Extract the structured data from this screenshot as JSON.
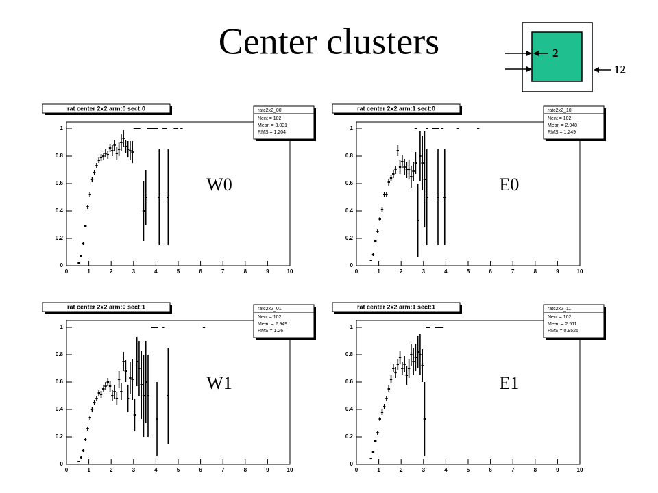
{
  "title": "Center clusters",
  "diagram": {
    "inner": "2",
    "outer": "12"
  },
  "chart_data": [
    {
      "type": "errorbar",
      "title": "rat center 2x2 arm:0 sect:0",
      "annotation": "W0",
      "stats": {
        "name": "ratc2x2_00",
        "lines": [
          "Nent = 102",
          "Mean = 3.031",
          "RMS = 1.204"
        ]
      },
      "xlim": [
        0,
        10
      ],
      "ylim": [
        0,
        1.05
      ],
      "xticks": [
        0,
        1,
        2,
        3,
        4,
        5,
        6,
        7,
        8,
        9,
        10
      ],
      "yticks": [
        0,
        0.2,
        0.4,
        0.6,
        0.8,
        1
      ],
      "color": "#000000",
      "x": [
        0.55,
        0.65,
        0.75,
        0.85,
        0.95,
        1.05,
        1.15,
        1.25,
        1.35,
        1.45,
        1.55,
        1.65,
        1.75,
        1.85,
        1.95,
        2.05,
        2.15,
        2.25,
        2.35,
        2.45,
        2.55,
        2.65,
        2.75,
        2.85,
        2.95,
        3.45,
        3.55,
        4.15,
        4.55,
        3.05,
        3.15,
        3.25,
        3.65,
        3.75,
        3.85,
        3.95,
        4.05,
        4.35,
        4.45,
        4.85,
        4.95,
        5.15
      ],
      "values": [
        0.02,
        0.07,
        0.16,
        0.29,
        0.43,
        0.52,
        0.63,
        0.68,
        0.73,
        0.77,
        0.79,
        0.8,
        0.82,
        0.81,
        0.86,
        0.84,
        0.88,
        0.82,
        0.85,
        0.9,
        0.93,
        0.87,
        0.85,
        0.84,
        0.83,
        0.4,
        0.5,
        0.5,
        0.5,
        1,
        1,
        1,
        1,
        1,
        1,
        1,
        1,
        1,
        1,
        1,
        1,
        1
      ],
      "errors": [
        0.005,
        0.01,
        0.01,
        0.01,
        0.015,
        0.015,
        0.02,
        0.02,
        0.02,
        0.02,
        0.025,
        0.025,
        0.03,
        0.03,
        0.03,
        0.04,
        0.04,
        0.05,
        0.05,
        0.06,
        0.06,
        0.05,
        0.06,
        0.07,
        0.08,
        0.22,
        0.2,
        0.35,
        0.35,
        0,
        0,
        0,
        0,
        0,
        0,
        0,
        0,
        0,
        0,
        0,
        0,
        0
      ]
    },
    {
      "type": "errorbar",
      "title": "rat center 2x2 arm:1 sect:0",
      "annotation": "E0",
      "stats": {
        "name": "ratc2x2_10",
        "lines": [
          "Nent = 102",
          "Mean = 2.948",
          "RMS = 1.249"
        ]
      },
      "xlim": [
        0,
        10
      ],
      "ylim": [
        0,
        1.05
      ],
      "xticks": [
        0,
        1,
        2,
        3,
        4,
        5,
        6,
        7,
        8,
        9,
        10
      ],
      "yticks": [
        0,
        0.2,
        0.4,
        0.6,
        0.8,
        1
      ],
      "color": "#000000",
      "x": [
        0.65,
        0.75,
        0.85,
        0.95,
        1.05,
        1.15,
        1.25,
        1.35,
        1.45,
        1.55,
        1.65,
        1.75,
        1.85,
        1.95,
        2.05,
        2.15,
        2.25,
        2.35,
        2.45,
        2.55,
        2.65,
        2.75,
        2.85,
        2.95,
        3.05,
        3.15,
        3.65,
        3.95,
        2.65,
        3.15,
        3.45,
        3.55,
        3.65,
        3.85,
        4.55,
        5.45
      ],
      "values": [
        0.04,
        0.08,
        0.18,
        0.25,
        0.34,
        0.41,
        0.52,
        0.52,
        0.61,
        0.64,
        0.67,
        0.7,
        0.84,
        0.72,
        0.76,
        0.72,
        0.7,
        0.7,
        0.65,
        0.69,
        0.75,
        0.33,
        0.8,
        0.75,
        0.63,
        0.5,
        0.5,
        0.5,
        1,
        1,
        1,
        1,
        1,
        1,
        1,
        1
      ],
      "errors": [
        0.005,
        0.01,
        0.01,
        0.015,
        0.015,
        0.02,
        0.02,
        0.02,
        0.025,
        0.025,
        0.03,
        0.03,
        0.04,
        0.05,
        0.05,
        0.06,
        0.06,
        0.07,
        0.08,
        0.07,
        0.08,
        0.27,
        0.18,
        0.2,
        0.35,
        0.35,
        0.35,
        0.35,
        0,
        0,
        0,
        0,
        0,
        0,
        0,
        0
      ]
    },
    {
      "type": "errorbar",
      "title": "rat center 2x2 arm:0 sect:1",
      "annotation": "W1",
      "stats": {
        "name": "ratc2x2_01",
        "lines": [
          "Nent = 102",
          "Mean = 2.949",
          "RMS = 1.26"
        ]
      },
      "xlim": [
        0,
        10
      ],
      "ylim": [
        0,
        1.05
      ],
      "xticks": [
        0,
        1,
        2,
        3,
        4,
        5,
        6,
        7,
        8,
        9,
        10
      ],
      "yticks": [
        0,
        0.2,
        0.4,
        0.6,
        0.8,
        1
      ],
      "color": "#000000",
      "x": [
        0.55,
        0.65,
        0.75,
        0.85,
        0.95,
        1.05,
        1.15,
        1.25,
        1.35,
        1.45,
        1.55,
        1.65,
        1.75,
        1.85,
        1.95,
        2.05,
        2.15,
        2.25,
        2.35,
        2.45,
        2.55,
        2.65,
        2.75,
        2.85,
        2.95,
        3.05,
        3.15,
        3.25,
        3.35,
        3.45,
        3.55,
        3.65,
        4.05,
        4.55,
        3.85,
        3.95,
        4.05,
        4.35,
        6.15
      ],
      "values": [
        0.02,
        0.05,
        0.1,
        0.18,
        0.26,
        0.34,
        0.4,
        0.45,
        0.48,
        0.52,
        0.51,
        0.55,
        0.57,
        0.6,
        0.57,
        0.5,
        0.53,
        0.48,
        0.62,
        0.53,
        0.75,
        0.68,
        0.48,
        0.63,
        0.62,
        0.36,
        0.75,
        0.7,
        0.58,
        0.5,
        0.6,
        0.5,
        0.33,
        0.5,
        1,
        1,
        1,
        1,
        1
      ],
      "errors": [
        0.005,
        0.01,
        0.01,
        0.01,
        0.015,
        0.015,
        0.02,
        0.02,
        0.02,
        0.02,
        0.025,
        0.025,
        0.03,
        0.03,
        0.04,
        0.04,
        0.05,
        0.05,
        0.06,
        0.06,
        0.07,
        0.08,
        0.1,
        0.12,
        0.15,
        0.12,
        0.18,
        0.2,
        0.25,
        0.3,
        0.3,
        0.3,
        0.27,
        0.35,
        0,
        0,
        0,
        0,
        0
      ]
    },
    {
      "type": "errorbar",
      "title": "rat center 2x2 arm:1 sect:1",
      "annotation": "E1",
      "stats": {
        "name": "ratc2x2_11",
        "lines": [
          "Nent = 102",
          "Mean = 2.511",
          "RMS = 0.9526"
        ]
      },
      "xlim": [
        0,
        10
      ],
      "ylim": [
        0,
        1.05
      ],
      "xticks": [
        0,
        1,
        2,
        3,
        4,
        5,
        6,
        7,
        8,
        9,
        10
      ],
      "yticks": [
        0,
        0.2,
        0.4,
        0.6,
        0.8,
        1
      ],
      "color": "#000000",
      "x": [
        0.65,
        0.75,
        0.85,
        0.95,
        1.05,
        1.15,
        1.25,
        1.35,
        1.45,
        1.55,
        1.65,
        1.75,
        1.85,
        1.95,
        2.05,
        2.15,
        2.25,
        2.35,
        2.45,
        2.55,
        2.65,
        2.75,
        2.85,
        2.95,
        3.05,
        3.15,
        3.25,
        3.55,
        3.65,
        3.75,
        3.85
      ],
      "values": [
        0.04,
        0.09,
        0.17,
        0.23,
        0.33,
        0.38,
        0.42,
        0.48,
        0.55,
        0.62,
        0.7,
        0.67,
        0.73,
        0.78,
        0.7,
        0.73,
        0.65,
        0.7,
        0.8,
        0.75,
        0.78,
        0.82,
        0.8,
        0.72,
        0.33,
        1,
        1,
        1,
        1,
        1,
        1
      ],
      "errors": [
        0.005,
        0.01,
        0.01,
        0.015,
        0.015,
        0.02,
        0.02,
        0.02,
        0.025,
        0.03,
        0.03,
        0.04,
        0.04,
        0.05,
        0.05,
        0.06,
        0.07,
        0.07,
        0.08,
        0.1,
        0.1,
        0.12,
        0.15,
        0.12,
        0.27,
        0,
        0,
        0,
        0,
        0,
        0
      ]
    }
  ]
}
